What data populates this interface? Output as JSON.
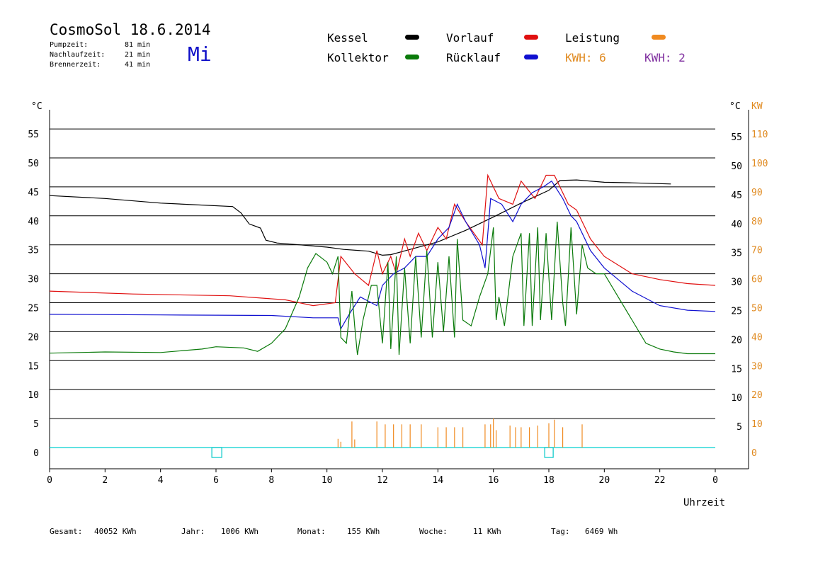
{
  "header": {
    "title": "CosmoSol 18.6.2014",
    "day": "Mi",
    "stats": [
      {
        "label": "Pumpzeit:",
        "value": "81 min"
      },
      {
        "label": "Nachlaufzeit:",
        "value": "21 min"
      },
      {
        "label": "Brennerzeit:",
        "value": "41 min"
      }
    ]
  },
  "legend": {
    "kessel": {
      "label": "Kessel",
      "color": "#000000"
    },
    "vorlauf": {
      "label": "Vorlauf",
      "color": "#e01010"
    },
    "leistung": {
      "label": "Leistung",
      "color": "#f08a20"
    },
    "kollektor": {
      "label": "Kollektor",
      "color": "#0a7a0a"
    },
    "ruecklauf": {
      "label": "Rücklauf",
      "color": "#1010d0"
    },
    "kwh1": {
      "label": "KWH: 6",
      "color": "#e08a20"
    },
    "kwh2": {
      "label": "KWH: 2",
      "color": "#8030a0"
    }
  },
  "footer": {
    "gesamt_label": "Gesamt:",
    "gesamt_value": "40052 KWh",
    "jahr_label": "Jahr:",
    "jahr_value": "1006 KWh",
    "monat_label": "Monat:",
    "monat_value": "155 KWh",
    "woche_label": "Woche:",
    "woche_value": "11 KWh",
    "tag_label": "Tag:",
    "tag_value": "6469 Wh"
  },
  "chart_data": {
    "type": "line",
    "xlabel": "Uhrzeit",
    "ylabel_left": "°C",
    "ylabel_right": "°C",
    "ylabel_right_power": "KW",
    "xlim": [
      0,
      24
    ],
    "ylim": [
      0,
      60
    ],
    "x_ticks": [
      "0",
      "2",
      "4",
      "6",
      "8",
      "10",
      "12",
      "14",
      "16",
      "18",
      "20",
      "22",
      "0"
    ],
    "y_ticks_left": [
      "0",
      "5",
      "10",
      "15",
      "20",
      "25",
      "30",
      "35",
      "40",
      "45",
      "50",
      "55"
    ],
    "y_ticks_right": [
      "5",
      "10",
      "15",
      "20",
      "25",
      "30",
      "35",
      "40",
      "45",
      "50",
      "55"
    ],
    "y_ticks_power": [
      "0",
      "10",
      "20",
      "30",
      "40",
      "50",
      "60",
      "70",
      "80",
      "90",
      "100",
      "110"
    ],
    "grid": true,
    "legend_position": "top",
    "series": [
      {
        "name": "Kessel",
        "color": "#000000",
        "points": [
          [
            0,
            43.5
          ],
          [
            2,
            43
          ],
          [
            4,
            42.2
          ],
          [
            6.6,
            41.6
          ],
          [
            6.9,
            40.5
          ],
          [
            7.2,
            38.6
          ],
          [
            7.6,
            37.9
          ],
          [
            7.8,
            35.8
          ],
          [
            8.2,
            35.3
          ],
          [
            9,
            35
          ],
          [
            10,
            34.6
          ],
          [
            10.6,
            34.2
          ],
          [
            11.5,
            33.9
          ],
          [
            12,
            33.2
          ],
          [
            12.3,
            33.3
          ],
          [
            13,
            34.2
          ],
          [
            14,
            35.5
          ],
          [
            15,
            37.5
          ],
          [
            16,
            39.8
          ],
          [
            17,
            42.2
          ],
          [
            18,
            44.4
          ],
          [
            18.4,
            46.1
          ],
          [
            19,
            46.2
          ],
          [
            20,
            45.8
          ],
          [
            21,
            45.7
          ],
          [
            22.4,
            45.5
          ]
        ]
      },
      {
        "name": "Vorlauf",
        "color": "#e01010",
        "points": [
          [
            0,
            27
          ],
          [
            3,
            26.5
          ],
          [
            6.5,
            26.2
          ],
          [
            8.5,
            25.5
          ],
          [
            9.5,
            24.5
          ],
          [
            10.3,
            25
          ],
          [
            10.5,
            33
          ],
          [
            11,
            30
          ],
          [
            11.5,
            28
          ],
          [
            11.8,
            34
          ],
          [
            12,
            30
          ],
          [
            12.3,
            33
          ],
          [
            12.5,
            30
          ],
          [
            12.8,
            36
          ],
          [
            13,
            33
          ],
          [
            13.3,
            37
          ],
          [
            13.6,
            34
          ],
          [
            14,
            38
          ],
          [
            14.3,
            36
          ],
          [
            14.6,
            42
          ],
          [
            15,
            39
          ],
          [
            15.6,
            35
          ],
          [
            15.8,
            47
          ],
          [
            16.2,
            43
          ],
          [
            16.7,
            42
          ],
          [
            17,
            46
          ],
          [
            17.5,
            43
          ],
          [
            17.9,
            47
          ],
          [
            18.2,
            47
          ],
          [
            18.7,
            42
          ],
          [
            19,
            41
          ],
          [
            19.5,
            36
          ],
          [
            20,
            33
          ],
          [
            21,
            30
          ],
          [
            22,
            29
          ],
          [
            23,
            28.3
          ],
          [
            24,
            28
          ]
        ]
      },
      {
        "name": "Rücklauf",
        "color": "#1010d0",
        "points": [
          [
            0,
            23
          ],
          [
            4,
            22.9
          ],
          [
            8,
            22.8
          ],
          [
            9.5,
            22.4
          ],
          [
            10.4,
            22.4
          ],
          [
            10.5,
            20.5
          ],
          [
            10.8,
            23
          ],
          [
            11.2,
            26
          ],
          [
            11.6,
            25
          ],
          [
            11.8,
            24.5
          ],
          [
            12,
            28
          ],
          [
            12.4,
            30
          ],
          [
            12.8,
            31
          ],
          [
            13.2,
            33
          ],
          [
            13.6,
            33
          ],
          [
            14,
            36
          ],
          [
            14.4,
            38
          ],
          [
            14.7,
            42
          ],
          [
            15,
            39
          ],
          [
            15.5,
            35
          ],
          [
            15.7,
            31
          ],
          [
            15.9,
            43
          ],
          [
            16.3,
            42
          ],
          [
            16.7,
            39
          ],
          [
            17,
            42
          ],
          [
            17.4,
            44
          ],
          [
            17.8,
            45
          ],
          [
            18.1,
            46
          ],
          [
            18.5,
            43
          ],
          [
            18.8,
            40
          ],
          [
            19,
            39
          ],
          [
            19.5,
            34
          ],
          [
            20,
            31
          ],
          [
            21,
            27
          ],
          [
            22,
            24.5
          ],
          [
            23,
            23.7
          ],
          [
            24,
            23.5
          ]
        ]
      },
      {
        "name": "Kollektor",
        "color": "#0a7a0a",
        "points": [
          [
            0,
            16.3
          ],
          [
            2,
            16.5
          ],
          [
            4,
            16.4
          ],
          [
            5.5,
            17
          ],
          [
            6,
            17.4
          ],
          [
            7,
            17.2
          ],
          [
            7.5,
            16.6
          ],
          [
            8,
            18
          ],
          [
            8.5,
            20.5
          ],
          [
            9,
            26
          ],
          [
            9.3,
            31
          ],
          [
            9.6,
            33.5
          ],
          [
            10,
            32
          ],
          [
            10.2,
            30
          ],
          [
            10.4,
            33
          ],
          [
            10.5,
            19
          ],
          [
            10.7,
            18
          ],
          [
            10.9,
            27
          ],
          [
            11,
            21
          ],
          [
            11.1,
            16
          ],
          [
            11.3,
            22
          ],
          [
            11.6,
            28
          ],
          [
            11.8,
            28
          ],
          [
            12,
            18
          ],
          [
            12.2,
            32
          ],
          [
            12.3,
            17
          ],
          [
            12.5,
            33
          ],
          [
            12.6,
            16
          ],
          [
            12.8,
            31
          ],
          [
            13,
            18
          ],
          [
            13.2,
            33
          ],
          [
            13.4,
            19
          ],
          [
            13.6,
            34
          ],
          [
            13.8,
            19
          ],
          [
            14,
            32
          ],
          [
            14.2,
            20
          ],
          [
            14.4,
            33
          ],
          [
            14.6,
            19
          ],
          [
            14.7,
            36
          ],
          [
            14.9,
            22
          ],
          [
            15.2,
            21
          ],
          [
            15.5,
            26
          ],
          [
            15.8,
            30
          ],
          [
            16,
            38
          ],
          [
            16.1,
            22
          ],
          [
            16.2,
            26
          ],
          [
            16.4,
            21
          ],
          [
            16.7,
            33
          ],
          [
            17,
            37
          ],
          [
            17.1,
            21
          ],
          [
            17.3,
            37
          ],
          [
            17.4,
            21
          ],
          [
            17.6,
            38
          ],
          [
            17.7,
            22
          ],
          [
            17.9,
            37
          ],
          [
            18.1,
            22
          ],
          [
            18.3,
            39
          ],
          [
            18.5,
            25
          ],
          [
            18.6,
            21
          ],
          [
            18.8,
            38
          ],
          [
            19,
            23
          ],
          [
            19.2,
            35
          ],
          [
            19.4,
            31
          ],
          [
            19.7,
            30
          ],
          [
            20,
            30
          ],
          [
            20.5,
            26
          ],
          [
            21,
            22
          ],
          [
            21.5,
            18
          ],
          [
            22,
            17
          ],
          [
            22.5,
            16.5
          ],
          [
            23,
            16.2
          ],
          [
            24,
            16.2
          ]
        ]
      }
    ],
    "power_series": [
      {
        "name": "Leistung",
        "color": "#f08a20",
        "spikes": [
          [
            10.4,
            1.5
          ],
          [
            10.5,
            1
          ],
          [
            10.9,
            4.5
          ],
          [
            11,
            1.4
          ],
          [
            11.8,
            4.5
          ],
          [
            12.1,
            4
          ],
          [
            12.4,
            4
          ],
          [
            12.7,
            4
          ],
          [
            13,
            4
          ],
          [
            13.4,
            4
          ],
          [
            14,
            3.5
          ],
          [
            14.3,
            3.5
          ],
          [
            14.6,
            3.5
          ],
          [
            14.9,
            3.5
          ],
          [
            15.7,
            4
          ],
          [
            15.9,
            4
          ],
          [
            16,
            5
          ],
          [
            16.1,
            3
          ],
          [
            16.6,
            3.8
          ],
          [
            16.8,
            3.5
          ],
          [
            17,
            3.5
          ],
          [
            17.3,
            3.5
          ],
          [
            17.6,
            3.8
          ],
          [
            18,
            4.2
          ],
          [
            18.2,
            4.8
          ],
          [
            18.5,
            3.5
          ],
          [
            19.2,
            4
          ]
        ]
      }
    ]
  }
}
